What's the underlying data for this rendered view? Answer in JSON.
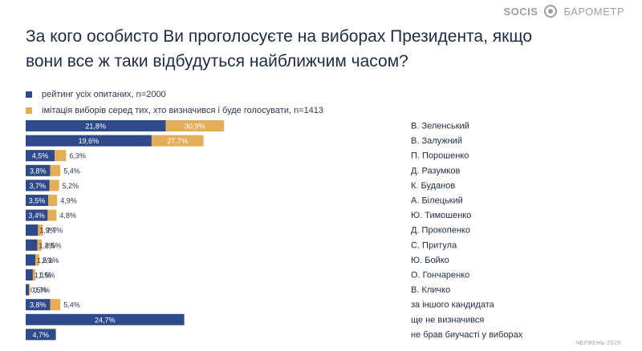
{
  "brand": {
    "logo": "SOCIS",
    "label": "БАРОМЕТР"
  },
  "title": "За кого особисто Ви проголосуєте на виборах Президента, якщо вони все ж таки відбудуться найближчим часом?",
  "footer": "ЧЕРВЕНЬ 2025",
  "colors": {
    "series1": "#2f4a8a",
    "series2": "#e4ad57"
  },
  "chart_data": {
    "type": "bar",
    "orientation": "horizontal",
    "categories": [
      "В. Зеленський",
      "В. Залужний",
      "П. Порошенко",
      "Д. Разумков",
      "К. Буданов",
      "А. Білецький",
      "Ю. Тимошенко",
      "Д. Прокопенко",
      "С. Притула",
      "Ю. Бойко",
      "О. Гончаренко",
      "В. Кличко",
      "за іншого кандидата",
      "ще не визначився",
      "не брав биучасті у виборах"
    ],
    "series": [
      {
        "name": "рейтинг усіх опитаних, n=2000",
        "values": [
          21.8,
          19.6,
          4.5,
          3.8,
          3.7,
          3.5,
          3.4,
          1.9,
          1.8,
          1.5,
          1.1,
          0.5,
          3.8,
          24.7,
          4.7
        ],
        "labels": [
          "21,8%",
          "19,6%",
          "4,5%",
          "3,8%",
          "3,7%",
          "3,5%",
          "3,4%",
          "1,9%",
          "1,8%",
          "1,5%",
          "1,1%",
          "0,5%",
          "3,8%",
          "24,7%",
          "4,7%"
        ]
      },
      {
        "name": "імітація виборів серед тих, хто визначився і буде голосувати, n=1413",
        "values": [
          30.9,
          27.7,
          6.3,
          5.4,
          5.2,
          4.9,
          4.8,
          2.7,
          2.5,
          2.1,
          1.5,
          0.7,
          5.4,
          null,
          null
        ],
        "labels": [
          "30,9%",
          "27,7%",
          "6,3%",
          "5,4%",
          "5,2%",
          "4,9%",
          "4,8%",
          "2,7%",
          "2,5%",
          "2,1%",
          "1,5%",
          "0,7%",
          "5,4%",
          "",
          ""
        ]
      }
    ]
  }
}
